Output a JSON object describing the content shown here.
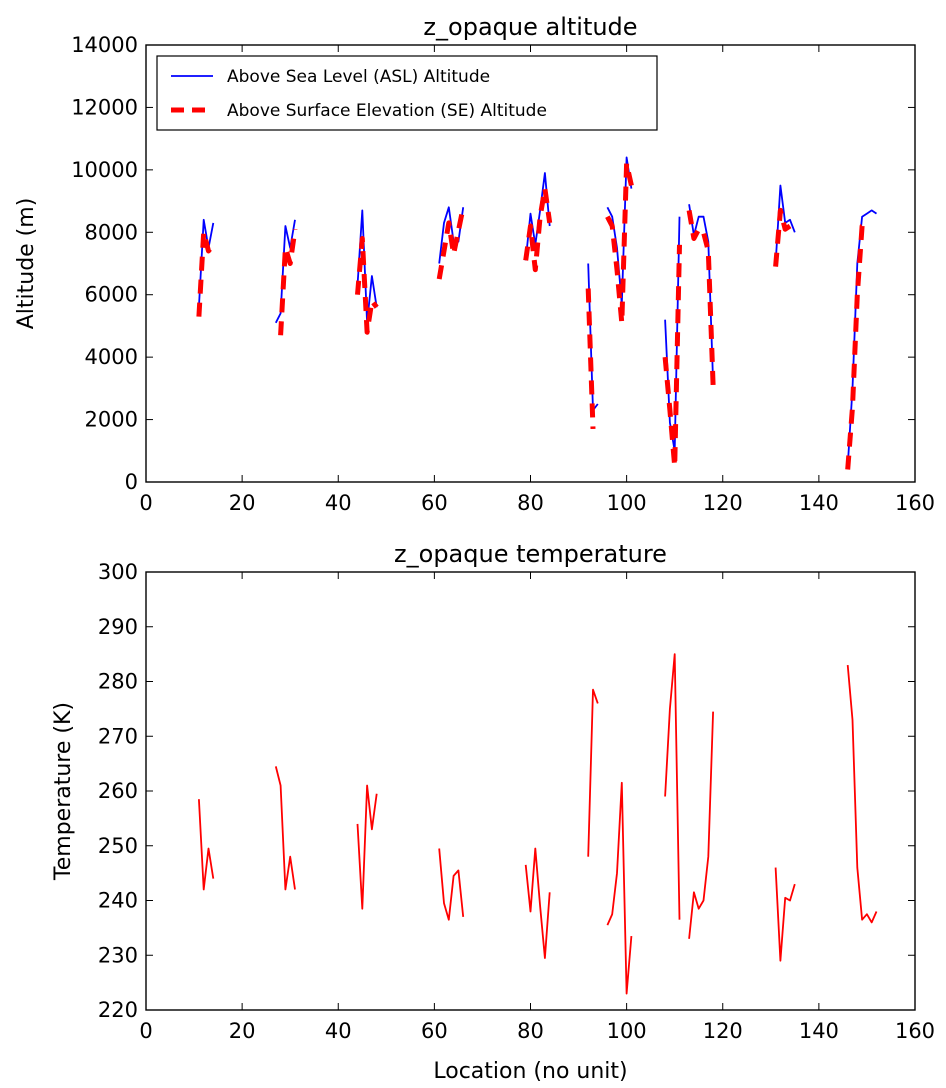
{
  "chart_data": [
    {
      "type": "line",
      "title": "z_opaque altitude",
      "xlabel": "",
      "ylabel": "Altitude (m)",
      "xlim": [
        0,
        160
      ],
      "ylim": [
        0,
        14000
      ],
      "xticks": [
        0,
        20,
        40,
        60,
        80,
        100,
        120,
        140,
        160
      ],
      "yticks": [
        0,
        2000,
        4000,
        6000,
        8000,
        10000,
        12000,
        14000
      ],
      "grid": false,
      "legend_position": "top-left",
      "series": [
        {
          "name": "Above Sea Level (ASL) Altitude",
          "color": "#0000ff",
          "style": "solid",
          "segments": [
            [
              [
                11,
                5600
              ],
              [
                12,
                8400
              ],
              [
                13,
                7500
              ],
              [
                14,
                8300
              ]
            ],
            [
              [
                27,
                5100
              ],
              [
                28,
                5400
              ],
              [
                29,
                8200
              ],
              [
                30,
                7500
              ],
              [
                31,
                8400
              ]
            ],
            [
              [
                44,
                6300
              ],
              [
                45,
                8700
              ],
              [
                46,
                5100
              ],
              [
                47,
                6600
              ],
              [
                48,
                5600
              ]
            ],
            [
              [
                61,
                7000
              ],
              [
                62,
                8300
              ],
              [
                63,
                8800
              ],
              [
                64,
                7700
              ],
              [
                65,
                7700
              ],
              [
                66,
                8800
              ]
            ],
            [
              [
                79,
                7100
              ],
              [
                80,
                8600
              ],
              [
                81,
                7600
              ],
              [
                82,
                8700
              ],
              [
                83,
                9900
              ],
              [
                84,
                8200
              ]
            ],
            [
              [
                92,
                7000
              ],
              [
                93,
                2300
              ],
              [
                94,
                2500
              ]
            ],
            [
              [
                96,
                8800
              ],
              [
                97,
                8500
              ],
              [
                98,
                7500
              ],
              [
                99,
                5700
              ],
              [
                100,
                10400
              ],
              [
                101,
                9400
              ]
            ],
            [
              [
                108,
                5200
              ],
              [
                109,
                1900
              ],
              [
                110,
                1000
              ],
              [
                111,
                8500
              ]
            ],
            [
              [
                113,
                8900
              ],
              [
                114,
                7900
              ],
              [
                115,
                8500
              ],
              [
                116,
                8500
              ],
              [
                117,
                7700
              ],
              [
                118,
                3200
              ]
            ],
            [
              [
                131,
                7000
              ],
              [
                132,
                9500
              ],
              [
                133,
                8300
              ],
              [
                134,
                8400
              ],
              [
                135,
                8000
              ]
            ],
            [
              [
                146,
                500
              ],
              [
                147,
                3000
              ],
              [
                148,
                7000
              ],
              [
                149,
                8500
              ],
              [
                150,
                8600
              ],
              [
                151,
                8700
              ],
              [
                152,
                8600
              ]
            ]
          ]
        },
        {
          "name": "Above Surface Elevation (SE) Altitude",
          "color": "#ff0000",
          "style": "dashed",
          "segments": [
            [
              [
                11,
                5300
              ],
              [
                12,
                8000
              ],
              [
                13,
                7400
              ],
              [
                14,
                7600
              ]
            ],
            [
              [
                28,
                4700
              ],
              [
                29,
                7500
              ],
              [
                30,
                7000
              ],
              [
                31,
                8100
              ]
            ],
            [
              [
                44,
                6000
              ],
              [
                45,
                7800
              ],
              [
                46,
                4800
              ],
              [
                47,
                5800
              ],
              [
                48,
                5600
              ]
            ],
            [
              [
                61,
                6500
              ],
              [
                63,
                8300
              ],
              [
                64,
                7300
              ],
              [
                66,
                8800
              ]
            ],
            [
              [
                79,
                7100
              ],
              [
                80,
                8200
              ],
              [
                81,
                6800
              ],
              [
                82,
                8500
              ],
              [
                83,
                9400
              ],
              [
                84,
                8300
              ]
            ],
            [
              [
                92,
                6200
              ],
              [
                93,
                1700
              ]
            ],
            [
              [
                96,
                8500
              ],
              [
                97,
                8200
              ],
              [
                98,
                6800
              ],
              [
                99,
                5100
              ],
              [
                100,
                10200
              ],
              [
                101,
                9500
              ]
            ],
            [
              [
                108,
                4000
              ],
              [
                109,
                2300
              ],
              [
                110,
                500
              ],
              [
                111,
                7600
              ]
            ],
            [
              [
                113,
                8700
              ],
              [
                114,
                7800
              ],
              [
                115,
                8100
              ],
              [
                116,
                8000
              ],
              [
                117,
                7400
              ],
              [
                118,
                3100
              ]
            ],
            [
              [
                131,
                6900
              ],
              [
                132,
                8700
              ],
              [
                133,
                8100
              ],
              [
                134,
                8200
              ]
            ],
            [
              [
                146,
                400
              ],
              [
                147,
                2400
              ],
              [
                148,
                6000
              ],
              [
                149,
                8200
              ],
              [
                150,
                8300
              ]
            ]
          ]
        }
      ]
    },
    {
      "type": "line",
      "title": "z_opaque temperature",
      "xlabel": "Location (no unit)",
      "ylabel": "Temperature (K)",
      "xlim": [
        0,
        160
      ],
      "ylim": [
        220,
        300
      ],
      "xticks": [
        0,
        20,
        40,
        60,
        80,
        100,
        120,
        140,
        160
      ],
      "yticks": [
        220,
        230,
        240,
        250,
        260,
        270,
        280,
        290,
        300
      ],
      "grid": false,
      "series": [
        {
          "name": "",
          "color": "#ff0000",
          "style": "solid",
          "segments": [
            [
              [
                11,
                258.5
              ],
              [
                12,
                242
              ],
              [
                13,
                249.5
              ],
              [
                14,
                244
              ]
            ],
            [
              [
                27,
                264.5
              ],
              [
                28,
                261
              ],
              [
                29,
                242
              ],
              [
                30,
                248
              ],
              [
                31,
                242
              ]
            ],
            [
              [
                44,
                254
              ],
              [
                45,
                238.5
              ],
              [
                46,
                261
              ],
              [
                47,
                253
              ],
              [
                48,
                259.5
              ]
            ],
            [
              [
                61,
                249.5
              ],
              [
                62,
                239.5
              ],
              [
                63,
                236.5
              ],
              [
                64,
                244.5
              ],
              [
                65,
                245.5
              ],
              [
                66,
                237
              ]
            ],
            [
              [
                79,
                246.5
              ],
              [
                80,
                238
              ],
              [
                81,
                249.5
              ],
              [
                82,
                239
              ],
              [
                83,
                229.5
              ],
              [
                84,
                241.5
              ]
            ],
            [
              [
                92,
                248
              ],
              [
                93,
                278.5
              ],
              [
                94,
                276
              ]
            ],
            [
              [
                96,
                235.5
              ],
              [
                97,
                237.5
              ],
              [
                98,
                245
              ],
              [
                99,
                261.5
              ],
              [
                100,
                223
              ],
              [
                101,
                233.5
              ]
            ],
            [
              [
                108,
                259
              ],
              [
                109,
                275
              ],
              [
                110,
                285
              ],
              [
                111,
                236.5
              ]
            ],
            [
              [
                113,
                233
              ],
              [
                114,
                241.5
              ],
              [
                115,
                238.5
              ],
              [
                116,
                240
              ],
              [
                117,
                248
              ],
              [
                118,
                274.5
              ]
            ],
            [
              [
                131,
                246
              ],
              [
                132,
                229
              ],
              [
                133,
                240.5
              ],
              [
                134,
                240
              ],
              [
                135,
                243
              ]
            ],
            [
              [
                146,
                283
              ],
              [
                147,
                273
              ],
              [
                148,
                246
              ],
              [
                149,
                236.5
              ],
              [
                150,
                237.5
              ],
              [
                151,
                236
              ],
              [
                152,
                238
              ]
            ]
          ]
        }
      ]
    }
  ]
}
